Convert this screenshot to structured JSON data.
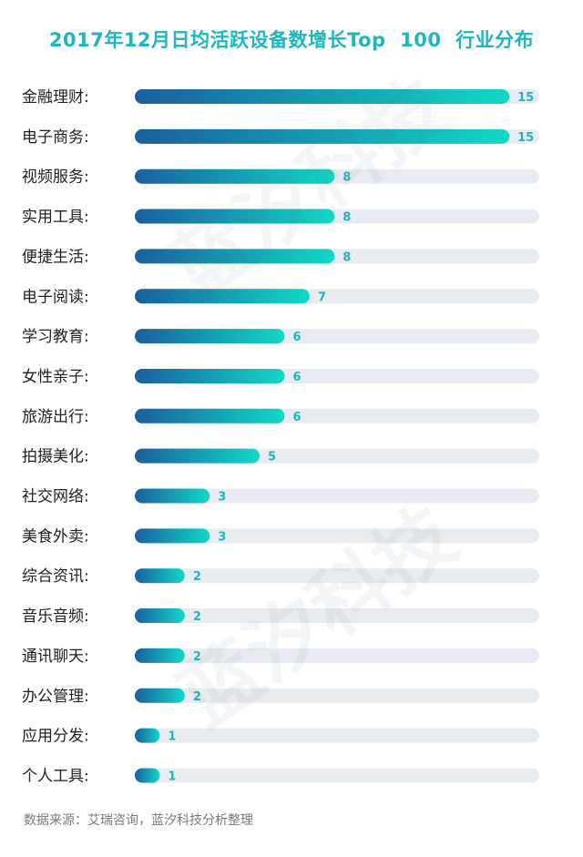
{
  "chart_data": {
    "type": "bar",
    "orientation": "horizontal",
    "title": "2017年12月日均活跃设备数增长Top  100  行业分布",
    "categories": [
      "金融理财:",
      "电子商务:",
      "视频服务:",
      "实用工具:",
      "便捷生活:",
      "电子阅读:",
      "学习教育:",
      "女性亲子:",
      "旅游出行:",
      "拍摄美化:",
      "社交网络:",
      "美食外卖:",
      "综合资讯:",
      "音乐音频:",
      "通讯聊天:",
      "办公管理:",
      "应用分发:",
      "个人工具:"
    ],
    "values": [
      15,
      15,
      8,
      8,
      8,
      7,
      6,
      6,
      6,
      5,
      3,
      3,
      2,
      2,
      2,
      2,
      1,
      1
    ],
    "xlim": [
      0,
      16.2
    ],
    "grid": false,
    "legend": "none",
    "colors": {
      "bar_start": "#1a5f9e",
      "bar_end": "#12d8c6",
      "track": "#e8ecf1",
      "label": "#222222",
      "value": "#1fb5bc",
      "title": "#1fb5bc"
    }
  },
  "source": "数据来源：艾瑞咨询，蓝汐科技分析整理",
  "watermark": "蓝汐科技"
}
